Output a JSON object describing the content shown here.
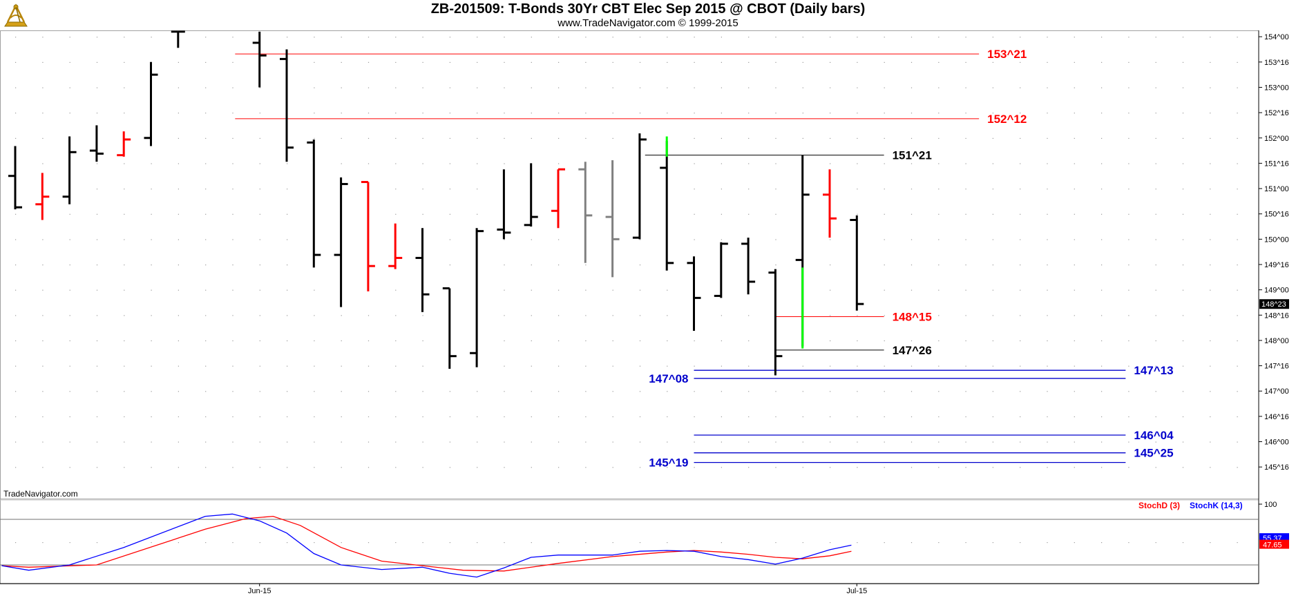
{
  "header": {
    "title": "ZB-201509:  T-Bonds 30Yr CBT Elec Sep 2015 @ CBOT  (Daily bars)",
    "subtitle": "www.TradeNavigator.com © 1999-2015",
    "logo_icon": "sextant-logo-icon"
  },
  "watermark": "TradeNavigator.com",
  "colors": {
    "bar_black": "#000000",
    "bar_red": "#ff0000",
    "bar_gray": "#808080",
    "bar_green": "#00ff00",
    "level_red": "#ff0000",
    "level_blue": "#0000cc",
    "stoch_d": "#ff0000",
    "stoch_k": "#0000ff"
  },
  "chart_data": [
    {
      "type": "ohlc",
      "ylim": [
        144.875,
        154.125
      ],
      "y_ticks": [
        "154^00",
        "153^16",
        "153^00",
        "152^16",
        "152^00",
        "151^16",
        "151^00",
        "150^16",
        "150^00",
        "149^16",
        "149^00",
        "148^16",
        "148^00",
        "147^16",
        "147^00",
        "146^16",
        "146^00",
        "145^16"
      ],
      "y_tick_values": [
        154.0,
        153.5,
        153.0,
        152.5,
        152.0,
        151.5,
        151.0,
        150.5,
        150.0,
        149.5,
        149.0,
        148.5,
        148.0,
        147.5,
        147.0,
        146.5,
        146.0,
        145.5
      ],
      "x_labels": [
        {
          "label": "Jun-15",
          "index": 9
        },
        {
          "label": "Jul-15",
          "index": 31
        }
      ],
      "last_price": "148^23",
      "last_price_value": 148.719,
      "bars": [
        {
          "i": 0,
          "o": 151.25,
          "h": 151.84,
          "l": 150.59,
          "c": 150.63,
          "color": "black"
        },
        {
          "i": 1,
          "o": 150.69,
          "h": 151.31,
          "l": 150.38,
          "c": 150.84,
          "color": "red"
        },
        {
          "i": 2,
          "o": 150.84,
          "h": 152.03,
          "l": 150.69,
          "c": 151.72,
          "color": "black"
        },
        {
          "i": 3,
          "o": 151.75,
          "h": 152.25,
          "l": 151.53,
          "c": 151.69,
          "color": "black"
        },
        {
          "i": 4,
          "o": 151.66,
          "h": 152.13,
          "l": 151.63,
          "c": 151.97,
          "color": "red"
        },
        {
          "i": 5,
          "o": 152.0,
          "h": 153.5,
          "l": 151.84,
          "c": 153.25,
          "color": "black"
        },
        {
          "i": 6,
          "o": 154.1,
          "h": 154.1,
          "l": 153.78,
          "c": 154.1,
          "color": "black"
        },
        {
          "i": 9,
          "o": 153.88,
          "h": 154.1,
          "l": 153.0,
          "c": 153.63,
          "color": "black"
        },
        {
          "i": 10,
          "o": 153.56,
          "h": 153.75,
          "l": 151.53,
          "c": 151.81,
          "color": "black"
        },
        {
          "i": 11,
          "o": 151.91,
          "h": 151.97,
          "l": 149.44,
          "c": 149.69,
          "color": "black"
        },
        {
          "i": 12,
          "o": 149.69,
          "h": 151.22,
          "l": 148.66,
          "c": 151.09,
          "color": "black"
        },
        {
          "i": 13,
          "o": 151.13,
          "h": 151.13,
          "l": 148.97,
          "c": 149.47,
          "color": "red"
        },
        {
          "i": 14,
          "o": 149.47,
          "h": 150.31,
          "l": 149.41,
          "c": 149.63,
          "color": "red"
        },
        {
          "i": 15,
          "o": 149.63,
          "h": 150.22,
          "l": 148.56,
          "c": 148.91,
          "color": "black"
        },
        {
          "i": 16,
          "o": 149.03,
          "h": 149.03,
          "l": 147.44,
          "c": 147.69,
          "color": "black"
        },
        {
          "i": 17,
          "o": 147.75,
          "h": 150.22,
          "l": 147.47,
          "c": 150.16,
          "color": "black"
        },
        {
          "i": 18,
          "o": 150.19,
          "h": 151.38,
          "l": 150.0,
          "c": 150.13,
          "color": "black"
        },
        {
          "i": 19,
          "o": 150.28,
          "h": 151.5,
          "l": 150.25,
          "c": 150.44,
          "color": "black"
        },
        {
          "i": 20,
          "o": 150.56,
          "h": 151.38,
          "l": 150.22,
          "c": 151.38,
          "color": "red"
        },
        {
          "i": 21,
          "o": 151.38,
          "h": 151.53,
          "l": 149.53,
          "c": 150.47,
          "color": "gray"
        },
        {
          "i": 22,
          "o": 150.44,
          "h": 151.56,
          "l": 149.25,
          "c": 150.0,
          "color": "gray"
        },
        {
          "i": 23,
          "o": 150.03,
          "h": 152.09,
          "l": 150.0,
          "c": 151.97,
          "color": "black"
        },
        {
          "i": 24,
          "o": 151.41,
          "h": 151.94,
          "l": 149.38,
          "c": 149.53,
          "color": "black"
        },
        {
          "i": 25,
          "o": 149.53,
          "h": 149.66,
          "l": 148.19,
          "c": 148.84,
          "color": "black"
        },
        {
          "i": 26,
          "o": 148.88,
          "h": 149.94,
          "l": 148.84,
          "c": 149.91,
          "color": "black"
        },
        {
          "i": 27,
          "o": 149.91,
          "h": 150.03,
          "l": 148.91,
          "c": 149.16,
          "color": "black"
        },
        {
          "i": 28,
          "o": 149.34,
          "h": 149.41,
          "l": 147.31,
          "c": 147.69,
          "color": "black"
        },
        {
          "i": 29,
          "o": 149.59,
          "h": 151.66,
          "l": 147.88,
          "c": 150.88,
          "color": "black"
        },
        {
          "i": 30,
          "o": 150.88,
          "h": 151.38,
          "l": 150.03,
          "c": 150.41,
          "color": "red"
        },
        {
          "i": 31,
          "o": 150.38,
          "h": 150.47,
          "l": 148.59,
          "c": 148.72,
          "color": "black"
        }
      ],
      "levels": [
        {
          "label": "153^21",
          "value": 153.66,
          "color": "red",
          "x_from": 8.1,
          "x_to": 35.5,
          "label_side": "right",
          "thick": false
        },
        {
          "label": "152^12",
          "value": 152.38,
          "color": "red",
          "x_from": 8.1,
          "x_to": 35.5,
          "label_side": "right",
          "thick": false
        },
        {
          "label": "151^21",
          "value": 151.66,
          "color": "black",
          "x_from": 23.2,
          "x_to": 32.0,
          "label_side": "right",
          "thick": false
        },
        {
          "label": "148^15",
          "value": 148.47,
          "color": "red",
          "x_from": 28.0,
          "x_to": 32.0,
          "label_side": "right",
          "thick": false
        },
        {
          "label": "147^26",
          "value": 147.81,
          "color": "black",
          "x_from": 28.0,
          "x_to": 32.0,
          "label_side": "right",
          "thick": false
        },
        {
          "label": "147^13",
          "value": 147.41,
          "color": "blue",
          "x_from": 25.0,
          "x_to": 40.9,
          "label_side": "right",
          "thick": true
        },
        {
          "label": "147^08",
          "value": 147.25,
          "color": "blue",
          "x_from": 25.0,
          "x_to": 40.9,
          "label_side": "left",
          "thick": true
        },
        {
          "label": "146^04",
          "value": 146.13,
          "color": "blue",
          "x_from": 25.0,
          "x_to": 40.9,
          "label_side": "right",
          "thick": true
        },
        {
          "label": "145^25",
          "value": 145.78,
          "color": "blue",
          "x_from": 25.0,
          "x_to": 40.9,
          "label_side": "right",
          "thick": true
        },
        {
          "label": "145^19",
          "value": 145.59,
          "color": "blue",
          "x_from": 25.0,
          "x_to": 40.9,
          "label_side": "left",
          "thick": true
        }
      ],
      "green_lines": [
        {
          "i": 24,
          "from": 151.63,
          "to": 152.03
        },
        {
          "i": 29,
          "from": 147.84,
          "to": 149.44
        }
      ]
    },
    {
      "type": "line",
      "series": [
        {
          "name": "StochD (3)",
          "color": "red",
          "values": [
            [
              -0.5,
              19
            ],
            [
              0.5,
              17
            ],
            [
              3,
              20
            ],
            [
              7,
              67
            ],
            [
              8.5,
              81
            ],
            [
              9.5,
              84
            ],
            [
              10.5,
              72
            ],
            [
              12,
              43
            ],
            [
              13.5,
              25
            ],
            [
              15,
              19
            ],
            [
              16.5,
              13
            ],
            [
              18,
              12
            ],
            [
              20,
              22
            ],
            [
              22,
              31
            ],
            [
              24,
              37
            ],
            [
              25,
              39
            ],
            [
              26,
              37
            ],
            [
              27,
              34
            ],
            [
              28,
              30
            ],
            [
              29,
              28
            ],
            [
              30,
              32
            ],
            [
              30.8,
              38
            ]
          ]
        },
        {
          "name": "StochK (14,3)",
          "color": "blue",
          "values": [
            [
              -0.5,
              19
            ],
            [
              0.5,
              13
            ],
            [
              2,
              20
            ],
            [
              4,
              43
            ],
            [
              7,
              84
            ],
            [
              8,
              87
            ],
            [
              9,
              78
            ],
            [
              10,
              62
            ],
            [
              11,
              35
            ],
            [
              12,
              20
            ],
            [
              13.5,
              14
            ],
            [
              15,
              17
            ],
            [
              16,
              9
            ],
            [
              17,
              4
            ],
            [
              18,
              16
            ],
            [
              19,
              30
            ],
            [
              20,
              33
            ],
            [
              22,
              33
            ],
            [
              23,
              38
            ],
            [
              24,
              39
            ],
            [
              25,
              38
            ],
            [
              26,
              31
            ],
            [
              27,
              27
            ],
            [
              28,
              21
            ],
            [
              29,
              29
            ],
            [
              30,
              40
            ],
            [
              30.8,
              46
            ]
          ]
        }
      ],
      "ylim": [
        0,
        100
      ],
      "y_ticks": [
        "100"
      ],
      "current_values": [
        "55.37",
        "47.65"
      ],
      "upper_line": 80,
      "lower_line": 20
    }
  ]
}
